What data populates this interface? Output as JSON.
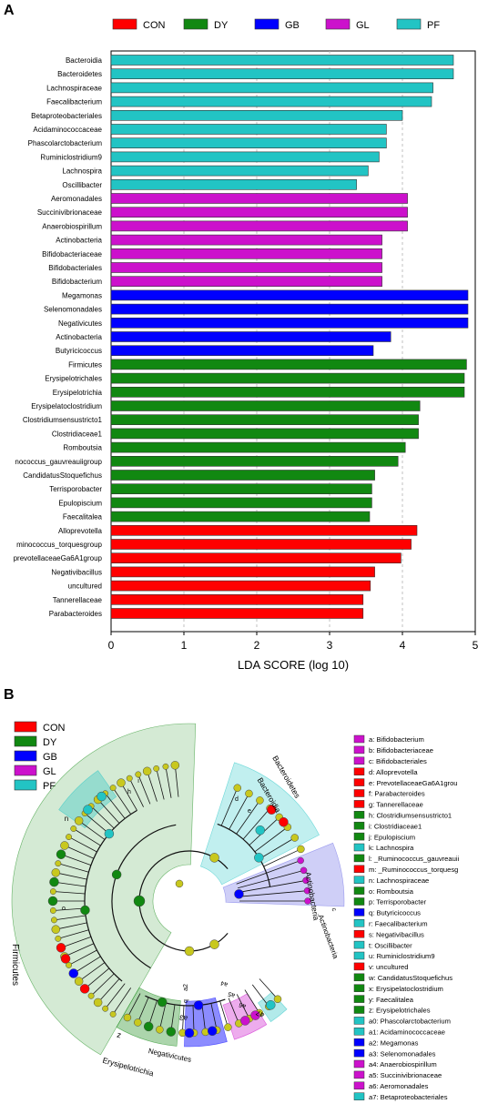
{
  "chart_data": [
    {
      "panel_label": "A",
      "type": "bar",
      "orientation": "horizontal",
      "xlabel": "LDA SCORE (log 10)",
      "xlim": [
        0,
        5
      ],
      "xticks": [
        "0",
        "1",
        "2",
        "3",
        "4",
        "5"
      ],
      "grid": "vertical dashed",
      "legend": {
        "placement": "top",
        "entries": [
          {
            "name": "CON",
            "color": "#ff0000"
          },
          {
            "name": "DY",
            "color": "#118811"
          },
          {
            "name": "GB",
            "color": "#0000ff"
          },
          {
            "name": "GL",
            "color": "#cc11cc"
          },
          {
            "name": "PF",
            "color": "#22c4c4"
          }
        ]
      },
      "bars": [
        {
          "label": "Bacteroidia",
          "value": 4.7,
          "group": "PF"
        },
        {
          "label": "Bacteroidetes",
          "value": 4.7,
          "group": "PF"
        },
        {
          "label": "Lachnospiraceae",
          "value": 4.42,
          "group": "PF"
        },
        {
          "label": "Faecalibacterium",
          "value": 4.4,
          "group": "PF"
        },
        {
          "label": "Betaproteobacteriales",
          "value": 4.0,
          "group": "PF"
        },
        {
          "label": "Acidaminococcaceae",
          "value": 3.78,
          "group": "PF"
        },
        {
          "label": "Phascolarctobacterium",
          "value": 3.78,
          "group": "PF"
        },
        {
          "label": "Ruminiclostridium9",
          "value": 3.68,
          "group": "PF"
        },
        {
          "label": "Lachnospira",
          "value": 3.53,
          "group": "PF"
        },
        {
          "label": "Oscillibacter",
          "value": 3.37,
          "group": "PF"
        },
        {
          "label": "Aeromonadales",
          "value": 4.07,
          "group": "GL"
        },
        {
          "label": "Succinivibrionaceae",
          "value": 4.07,
          "group": "GL"
        },
        {
          "label": "Anaerobiospirillum",
          "value": 4.07,
          "group": "GL"
        },
        {
          "label": "Actinobacteria",
          "value": 3.72,
          "group": "GL"
        },
        {
          "label": "Bifidobacteriaceae",
          "value": 3.72,
          "group": "GL"
        },
        {
          "label": "Bifidobacteriales",
          "value": 3.72,
          "group": "GL"
        },
        {
          "label": "Bifidobacterium",
          "value": 3.72,
          "group": "GL"
        },
        {
          "label": "Megamonas",
          "value": 4.9,
          "group": "GB"
        },
        {
          "label": "Selenomonadales",
          "value": 4.9,
          "group": "GB"
        },
        {
          "label": "Negativicutes",
          "value": 4.9,
          "group": "GB"
        },
        {
          "label": "Actinobacteria",
          "value": 3.84,
          "group": "GB"
        },
        {
          "label": "Butyricicoccus",
          "value": 3.6,
          "group": "GB"
        },
        {
          "label": "Firmicutes",
          "value": 4.88,
          "group": "DY"
        },
        {
          "label": "Erysipelotrichales",
          "value": 4.85,
          "group": "DY"
        },
        {
          "label": "Erysipelotrichia",
          "value": 4.85,
          "group": "DY"
        },
        {
          "label": "Erysipelatoclostridium",
          "value": 4.24,
          "group": "DY"
        },
        {
          "label": "Clostridiumsensustricto1",
          "value": 4.22,
          "group": "DY"
        },
        {
          "label": "Clostridiaceae1",
          "value": 4.22,
          "group": "DY"
        },
        {
          "label": "Romboutsia",
          "value": 4.04,
          "group": "DY"
        },
        {
          "label": "nococcus_gauvreauiigroup",
          "value": 3.94,
          "group": "DY"
        },
        {
          "label": "CandidatusStoquefichus",
          "value": 3.62,
          "group": "DY"
        },
        {
          "label": "Terrisporobacter",
          "value": 3.58,
          "group": "DY"
        },
        {
          "label": "Epulopiscium",
          "value": 3.58,
          "group": "DY"
        },
        {
          "label": "Faecalitalea",
          "value": 3.55,
          "group": "DY"
        },
        {
          "label": "Alloprevotella",
          "value": 4.2,
          "group": "CON"
        },
        {
          "label": "minococcus_torquesgroup",
          "value": 4.12,
          "group": "CON"
        },
        {
          "label": "prevotellaceaeGa6A1group",
          "value": 3.98,
          "group": "CON"
        },
        {
          "label": "Negativibacillus",
          "value": 3.62,
          "group": "CON"
        },
        {
          "label": "uncultured",
          "value": 3.56,
          "group": "CON"
        },
        {
          "label": "Tannerellaceae",
          "value": 3.46,
          "group": "CON"
        },
        {
          "label": "Parabacteroides",
          "value": 3.46,
          "group": "CON"
        }
      ]
    },
    {
      "panel_label": "B",
      "type": "cladogram",
      "legend": {
        "placement": "top-left",
        "entries": [
          {
            "name": "CON",
            "color": "#ff0000"
          },
          {
            "name": "DY",
            "color": "#118811"
          },
          {
            "name": "GB",
            "color": "#0000ff"
          },
          {
            "name": "GL",
            "color": "#cc11cc"
          },
          {
            "name": "PF",
            "color": "#22c4c4"
          }
        ]
      },
      "key_list": [
        {
          "text": "a: Bifidobacterium",
          "group": "GL"
        },
        {
          "text": "b: Bifidobacteriaceae",
          "group": "GL"
        },
        {
          "text": "c: Bifidobacteriales",
          "group": "GL"
        },
        {
          "text": "d: Alloprevotella",
          "group": "CON"
        },
        {
          "text": "e: PrevotellaceaeGa6A1grou",
          "group": "CON"
        },
        {
          "text": "f: Parabacteroides",
          "group": "CON"
        },
        {
          "text": "g: Tannerellaceae",
          "group": "CON"
        },
        {
          "text": "h: Clostridiumsensustricto1",
          "group": "DY"
        },
        {
          "text": "i: Clostridiaceae1",
          "group": "DY"
        },
        {
          "text": "j: Epulopiscium",
          "group": "DY"
        },
        {
          "text": "k: Lachnospira",
          "group": "PF"
        },
        {
          "text": "l: _Ruminococcus_gauvreauii",
          "group": "DY"
        },
        {
          "text": "m: _Ruminococcus_torquesg",
          "group": "CON"
        },
        {
          "text": "n: Lachnospiraceae",
          "group": "PF"
        },
        {
          "text": "o: Romboutsia",
          "group": "DY"
        },
        {
          "text": "p: Terrisporobacter",
          "group": "DY"
        },
        {
          "text": "q: Butyricicoccus",
          "group": "GB"
        },
        {
          "text": "r: Faecalibacterium",
          "group": "PF"
        },
        {
          "text": "s: Negativibacillus",
          "group": "CON"
        },
        {
          "text": "t: Oscillibacter",
          "group": "PF"
        },
        {
          "text": "u: Ruminiclostridium9",
          "group": "PF"
        },
        {
          "text": "v: uncultured",
          "group": "CON"
        },
        {
          "text": "w: CandidatusStoquefichus",
          "group": "DY"
        },
        {
          "text": "x: Erysipelatoclostridium",
          "group": "DY"
        },
        {
          "text": "y: Faecalitalea",
          "group": "DY"
        },
        {
          "text": "z: Erysipelotrichales",
          "group": "DY"
        },
        {
          "text": "a0: Phascolarctobacterium",
          "group": "PF"
        },
        {
          "text": "a1: Acidaminococcaceae",
          "group": "PF"
        },
        {
          "text": "a2: Megamonas",
          "group": "GB"
        },
        {
          "text": "a3: Selenomonadales",
          "group": "GB"
        },
        {
          "text": "a4: Anaerobiospirillum",
          "group": "GL"
        },
        {
          "text": "a5: Succinivibrionaceae",
          "group": "GL"
        },
        {
          "text": "a6: Aeromonadales",
          "group": "GL"
        },
        {
          "text": "a7: Betaproteobacteriales",
          "group": "PF"
        }
      ],
      "clade_labels": [
        {
          "text": "Firmicutes",
          "group": "DY"
        },
        {
          "text": "Bacteroidetes",
          "group": "PF"
        },
        {
          "text": "Bacteroidia",
          "group": "PF"
        },
        {
          "text": "Actinobacteria",
          "group": "GL"
        },
        {
          "text": "Actinobacteria",
          "group": "GL"
        },
        {
          "text": "Erysipelotrichia",
          "group": "DY"
        },
        {
          "text": "Negativicutes",
          "group": "GB"
        },
        {
          "text": "z",
          "group": "DY"
        },
        {
          "text": "a3",
          "group": "GB"
        },
        {
          "text": "a7",
          "group": "PF"
        },
        {
          "text": "a6",
          "group": "GL"
        },
        {
          "text": "a5",
          "group": "GL"
        },
        {
          "text": "a4",
          "group": "GL"
        },
        {
          "text": "a2",
          "group": "GB"
        },
        {
          "text": "q",
          "group": "GB"
        },
        {
          "text": "n",
          "group": "PF"
        },
        {
          "text": "o",
          "group": "DY"
        },
        {
          "text": "i",
          "group": "DY"
        },
        {
          "text": "h",
          "group": "DY"
        },
        {
          "text": "d",
          "group": "CON"
        },
        {
          "text": "e",
          "group": "CON"
        },
        {
          "text": "c",
          "group": "GL"
        }
      ]
    }
  ]
}
